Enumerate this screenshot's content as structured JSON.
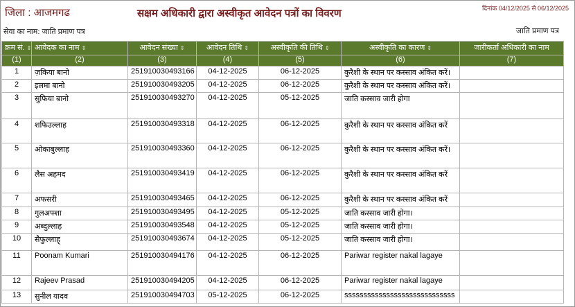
{
  "header": {
    "district": "जिला : आजमगढ",
    "title": "सक्षम अधिकारी द्वारा अस्वीकृत आवेदन पत्रों का विवरण",
    "date_range": "दिनांक 04/12/2025 से 06/12/2025",
    "service": "सेवा का नाम: जाति प्रमाण पत्र",
    "service_right": "जाति प्रमाण पत्र"
  },
  "table": {
    "columns": [
      "क्रम सं.",
      "आवेदक का नाम",
      "आवेदन संख्या",
      "आवेदन तिथि",
      "अस्वीकृति की तिथि",
      "अस्वीकृति का कारण",
      "जारीकर्ता अधिकारी का नाम"
    ],
    "column_numbers": [
      "(1)",
      "(2)",
      "(3)",
      "(4)",
      "(5)",
      "(6)",
      "(7)"
    ],
    "rows": [
      [
        "1",
        "ज़किया बानो",
        "251910030493166",
        "04-12-2025",
        "06-12-2025",
        "कुरैशी के स्थान पर कस्साव अंकित करें।"
      ],
      [
        "2",
        "इलमा बानो",
        "251910030493205",
        "04-12-2025",
        "06-12-2025",
        "कुरैशी के स्थान पर कस्साव अंकित करें।"
      ],
      [
        "3",
        "सुफिया बानो",
        "251910030493270",
        "04-12-2025",
        "05-12-2025",
        "जाति कस्साव जारी होगा"
      ],
      [
        "4",
        "शफिउल्लाह",
        "251910030493318",
        "04-12-2025",
        "06-12-2025",
        "कुरैशी के स्थान पर कस्साव अंकित करें"
      ],
      [
        "5",
        "ओकाबुल्लाह",
        "251910030493360",
        "04-12-2025",
        "06-12-2025",
        "कुरैशी के स्थान पर कस्साव अंकित करें।"
      ],
      [
        "6",
        "लैस अहमद",
        "251910030493419",
        "04-12-2025",
        "06-12-2025",
        "कुरैशी के स्थान पर कस्साव अंकित करें"
      ],
      [
        "7",
        "अफसरी",
        "251910030493465",
        "04-12-2025",
        "06-12-2025",
        "कुरैशी के स्थान पर कस्साव अंकित करें"
      ],
      [
        "8",
        "गुलअफ्शा",
        "251910030493495",
        "04-12-2025",
        "05-12-2025",
        "जाति कस्साव जारी होगा।"
      ],
      [
        "9",
        "अब्दुल्लाह",
        "251910030493548",
        "04-12-2025",
        "05-12-2025",
        "जाति कस्साव जारी होगा।"
      ],
      [
        "10",
        "सैफुल्लाह्",
        "251910030493674",
        "04-12-2025",
        "05-12-2025",
        "जाति कस्साव जारी होगा।"
      ],
      [
        "11",
        "Poonam Kumari",
        "251910030494176",
        "04-12-2025",
        "06-12-2025",
        "Pariwar register nakal lagaye"
      ],
      [
        "12",
        "Rajeev Prasad",
        "251910030494205",
        "04-12-2025",
        "06-12-2025",
        "Pariwar register nakal lagaye"
      ],
      [
        "13",
        "सुनील यादव",
        "251910030494703",
        "05-12-2025",
        "06-12-2025",
        "sssssssssssssssssssssssssssss"
      ]
    ]
  }
}
